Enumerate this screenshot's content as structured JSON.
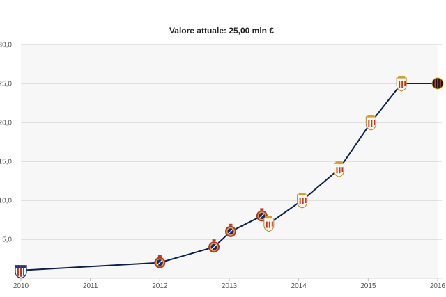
{
  "chart_data": {
    "type": "line",
    "title": "Valore attuale: 25,00 mln €",
    "xlabel": "",
    "ylabel": "",
    "x_ticks": [
      "2010",
      "2011",
      "2012",
      "2013",
      "2014",
      "2015",
      "2016"
    ],
    "y_ticks": [
      "5,0",
      "10,0",
      "15,0",
      "20,0",
      "25,0",
      "30,0"
    ],
    "xlim": [
      2010,
      2016
    ],
    "ylim": [
      0,
      30
    ],
    "grid": true,
    "colors": {
      "line": "#0b1f4d",
      "grid": "#c8c8c8",
      "plot_bg": "#f7f7f8"
    },
    "series": [
      {
        "points": [
          {
            "x": 2010.0,
            "y": 1.0,
            "club": "junior-crest-icon"
          },
          {
            "x": 2012.0,
            "y": 2.0,
            "club": "brugge-crest-icon"
          },
          {
            "x": 2012.78,
            "y": 4.0,
            "club": "brugge-crest-icon"
          },
          {
            "x": 2013.02,
            "y": 6.0,
            "club": "brugge-crest-icon"
          },
          {
            "x": 2013.47,
            "y": 8.0,
            "club": "brugge-crest-icon"
          },
          {
            "x": 2013.57,
            "y": 7.0,
            "club": "sevilla-crest-icon"
          },
          {
            "x": 2014.05,
            "y": 10.0,
            "club": "sevilla-crest-icon"
          },
          {
            "x": 2014.58,
            "y": 14.0,
            "club": "sevilla-crest-icon"
          },
          {
            "x": 2015.04,
            "y": 20.0,
            "club": "sevilla-crest-icon"
          },
          {
            "x": 2015.48,
            "y": 25.0,
            "club": "sevilla-crest-icon"
          },
          {
            "x": 2016.0,
            "y": 25.0,
            "club": "milan-crest-icon"
          }
        ]
      }
    ]
  }
}
